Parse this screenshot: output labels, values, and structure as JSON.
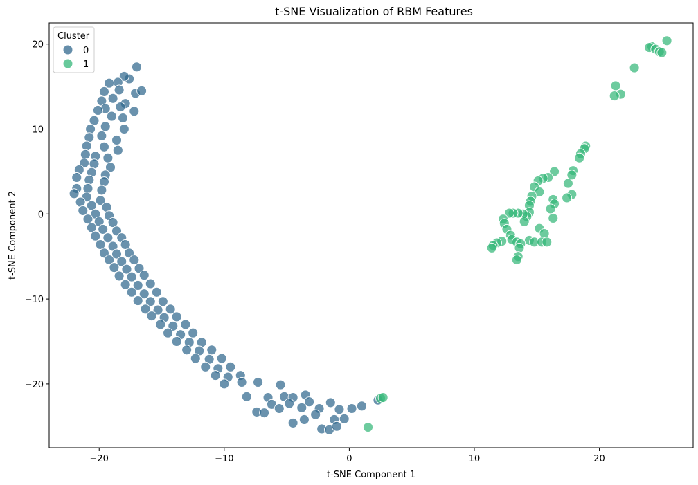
{
  "chart_data": {
    "type": "scatter",
    "title": "t-SNE Visualization of RBM Features",
    "xlabel": "t-SNE Component 1",
    "ylabel": "t-SNE Component 2",
    "xlim": [
      -24,
      27.5
    ],
    "ylim": [
      -27.5,
      22.5
    ],
    "xticks": [
      -20,
      -10,
      0,
      10,
      20
    ],
    "yticks": [
      -20,
      -10,
      0,
      10,
      20
    ],
    "grid": false,
    "legend": {
      "title": "Cluster",
      "placement": "top-left",
      "entries": [
        {
          "label": "0",
          "color": "#31688e"
        },
        {
          "label": "1",
          "color": "#35b779"
        }
      ]
    },
    "series": [
      {
        "name": "0",
        "color": "#31688e",
        "points": [
          [
            -17.0,
            17.3
          ],
          [
            -17.6,
            15.9
          ],
          [
            -18.0,
            16.2
          ],
          [
            -18.5,
            15.5
          ],
          [
            -19.2,
            15.4
          ],
          [
            -18.4,
            14.6
          ],
          [
            -19.6,
            14.4
          ],
          [
            -17.1,
            14.2
          ],
          [
            -16.6,
            14.5
          ],
          [
            -18.9,
            13.6
          ],
          [
            -19.8,
            13.3
          ],
          [
            -17.9,
            13.0
          ],
          [
            -19.5,
            12.4
          ],
          [
            -20.1,
            12.2
          ],
          [
            -18.3,
            12.6
          ],
          [
            -17.2,
            12.1
          ],
          [
            -19.0,
            11.5
          ],
          [
            -20.4,
            11.0
          ],
          [
            -18.1,
            11.3
          ],
          [
            -20.7,
            10.0
          ],
          [
            -19.5,
            10.3
          ],
          [
            -18.0,
            10.0
          ],
          [
            -20.8,
            9.0
          ],
          [
            -19.8,
            9.2
          ],
          [
            -18.6,
            8.7
          ],
          [
            -21.0,
            8.0
          ],
          [
            -19.6,
            7.9
          ],
          [
            -18.5,
            7.5
          ],
          [
            -21.1,
            7.0
          ],
          [
            -20.3,
            6.8
          ],
          [
            -19.3,
            6.6
          ],
          [
            -21.2,
            6.0
          ],
          [
            -20.4,
            5.9
          ],
          [
            -19.1,
            5.5
          ],
          [
            -21.6,
            5.2
          ],
          [
            -20.6,
            4.9
          ],
          [
            -19.5,
            4.6
          ],
          [
            -21.8,
            4.3
          ],
          [
            -20.8,
            4.0
          ],
          [
            -19.6,
            3.8
          ],
          [
            -21.8,
            3.0
          ],
          [
            -20.9,
            3.0
          ],
          [
            -19.8,
            2.8
          ],
          [
            -22.0,
            2.4
          ],
          [
            -21.0,
            2.0
          ],
          [
            -19.9,
            1.6
          ],
          [
            -21.5,
            1.4
          ],
          [
            -20.6,
            1.0
          ],
          [
            -19.4,
            0.8
          ],
          [
            -21.3,
            0.4
          ],
          [
            -20.3,
            0.0
          ],
          [
            -19.2,
            -0.2
          ],
          [
            -20.9,
            -0.6
          ],
          [
            -20.0,
            -0.9
          ],
          [
            -18.9,
            -1.0
          ],
          [
            -20.6,
            -1.6
          ],
          [
            -19.7,
            -1.8
          ],
          [
            -18.6,
            -2.0
          ],
          [
            -20.3,
            -2.6
          ],
          [
            -19.3,
            -2.8
          ],
          [
            -18.2,
            -2.8
          ],
          [
            -19.9,
            -3.6
          ],
          [
            -18.9,
            -3.8
          ],
          [
            -17.9,
            -3.6
          ],
          [
            -19.6,
            -4.6
          ],
          [
            -18.6,
            -4.7
          ],
          [
            -17.6,
            -4.6
          ],
          [
            -19.2,
            -5.4
          ],
          [
            -18.2,
            -5.6
          ],
          [
            -17.2,
            -5.4
          ],
          [
            -18.8,
            -6.3
          ],
          [
            -17.8,
            -6.5
          ],
          [
            -16.8,
            -6.4
          ],
          [
            -18.4,
            -7.3
          ],
          [
            -17.4,
            -7.4
          ],
          [
            -16.4,
            -7.2
          ],
          [
            -17.9,
            -8.3
          ],
          [
            -16.9,
            -8.4
          ],
          [
            -15.9,
            -8.2
          ],
          [
            -17.4,
            -9.2
          ],
          [
            -16.4,
            -9.4
          ],
          [
            -15.4,
            -9.2
          ],
          [
            -16.9,
            -10.2
          ],
          [
            -15.9,
            -10.3
          ],
          [
            -14.9,
            -10.3
          ],
          [
            -16.3,
            -11.2
          ],
          [
            -15.3,
            -11.3
          ],
          [
            -14.3,
            -11.2
          ],
          [
            -15.8,
            -12.0
          ],
          [
            -14.8,
            -12.2
          ],
          [
            -13.8,
            -12.1
          ],
          [
            -15.1,
            -13.0
          ],
          [
            -14.1,
            -13.2
          ],
          [
            -13.1,
            -13.0
          ],
          [
            -14.5,
            -14.0
          ],
          [
            -13.5,
            -14.2
          ],
          [
            -12.5,
            -14.0
          ],
          [
            -13.8,
            -15.0
          ],
          [
            -12.8,
            -15.1
          ],
          [
            -11.8,
            -15.1
          ],
          [
            -13.0,
            -16.0
          ],
          [
            -12.0,
            -16.1
          ],
          [
            -11.0,
            -16.0
          ],
          [
            -12.3,
            -17.0
          ],
          [
            -11.2,
            -17.1
          ],
          [
            -10.2,
            -17.0
          ],
          [
            -11.5,
            -18.0
          ],
          [
            -10.5,
            -18.2
          ],
          [
            -9.5,
            -18.0
          ],
          [
            -10.7,
            -19.0
          ],
          [
            -9.7,
            -19.2
          ],
          [
            -8.7,
            -19.0
          ],
          [
            -10.0,
            -20.0
          ],
          [
            -8.6,
            -19.8
          ],
          [
            -7.3,
            -19.8
          ],
          [
            -5.5,
            -20.1
          ],
          [
            -8.2,
            -21.5
          ],
          [
            -6.5,
            -21.6
          ],
          [
            -5.2,
            -21.5
          ],
          [
            -4.5,
            -21.6
          ],
          [
            -3.5,
            -21.3
          ],
          [
            -6.2,
            -22.4
          ],
          [
            -4.8,
            -22.3
          ],
          [
            -3.2,
            -22.1
          ],
          [
            -1.5,
            -22.2
          ],
          [
            -7.4,
            -23.3
          ],
          [
            -6.8,
            -23.4
          ],
          [
            -5.6,
            -22.9
          ],
          [
            -3.8,
            -22.8
          ],
          [
            -2.4,
            -22.9
          ],
          [
            -0.8,
            -23.0
          ],
          [
            0.2,
            -22.9
          ],
          [
            1.0,
            -22.6
          ],
          [
            2.3,
            -21.9
          ],
          [
            -4.5,
            -24.6
          ],
          [
            -3.6,
            -24.2
          ],
          [
            -2.7,
            -23.6
          ],
          [
            -1.2,
            -24.2
          ],
          [
            -0.4,
            -24.1
          ],
          [
            -2.2,
            -25.3
          ],
          [
            -1.6,
            -25.4
          ],
          [
            -1.0,
            -25.0
          ]
        ]
      },
      {
        "name": "1",
        "color": "#35b779",
        "points": [
          [
            25.4,
            20.4
          ],
          [
            24.2,
            19.7
          ],
          [
            24.0,
            19.6
          ],
          [
            24.5,
            19.4
          ],
          [
            24.8,
            19.1
          ],
          [
            25.0,
            19.0
          ],
          [
            22.8,
            17.2
          ],
          [
            21.3,
            15.1
          ],
          [
            21.7,
            14.1
          ],
          [
            21.2,
            13.9
          ],
          [
            18.9,
            8.0
          ],
          [
            18.8,
            7.7
          ],
          [
            18.5,
            7.1
          ],
          [
            18.4,
            6.6
          ],
          [
            17.9,
            5.1
          ],
          [
            17.8,
            4.6
          ],
          [
            16.4,
            5.0
          ],
          [
            15.9,
            4.3
          ],
          [
            15.5,
            4.2
          ],
          [
            15.1,
            3.9
          ],
          [
            17.5,
            3.6
          ],
          [
            14.8,
            3.2
          ],
          [
            15.2,
            2.6
          ],
          [
            14.6,
            2.1
          ],
          [
            17.8,
            2.3
          ],
          [
            17.4,
            1.9
          ],
          [
            16.3,
            1.7
          ],
          [
            16.4,
            1.2
          ],
          [
            14.5,
            1.5
          ],
          [
            14.4,
            1.0
          ],
          [
            16.1,
            0.6
          ],
          [
            14.4,
            0.2
          ],
          [
            14.2,
            -0.3
          ],
          [
            13.9,
            0.0
          ],
          [
            13.5,
            0.1
          ],
          [
            13.1,
            0.1
          ],
          [
            12.8,
            0.1
          ],
          [
            16.3,
            -0.5
          ],
          [
            12.3,
            -0.6
          ],
          [
            14.0,
            -0.9
          ],
          [
            12.4,
            -1.1
          ],
          [
            15.2,
            -1.7
          ],
          [
            12.6,
            -1.8
          ],
          [
            15.6,
            -2.3
          ],
          [
            12.9,
            -2.5
          ],
          [
            13.0,
            -3.0
          ],
          [
            13.4,
            -3.3
          ],
          [
            14.4,
            -3.1
          ],
          [
            14.8,
            -3.3
          ],
          [
            15.4,
            -3.3
          ],
          [
            15.8,
            -3.3
          ],
          [
            12.2,
            -3.2
          ],
          [
            11.8,
            -3.4
          ],
          [
            11.5,
            -3.7
          ],
          [
            11.4,
            -4.0
          ],
          [
            13.7,
            -3.5
          ],
          [
            13.6,
            -4.0
          ],
          [
            13.5,
            -5.0
          ],
          [
            13.4,
            -5.4
          ],
          [
            2.5,
            -21.7
          ],
          [
            2.7,
            -21.6
          ],
          [
            1.5,
            -25.1
          ]
        ]
      }
    ]
  }
}
